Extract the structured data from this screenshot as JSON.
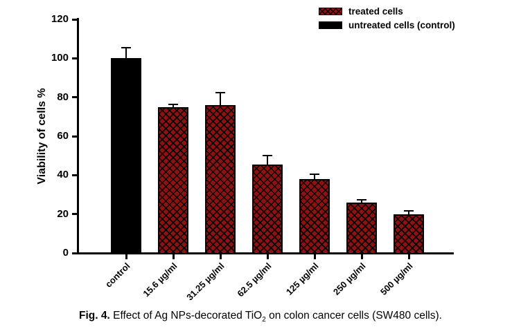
{
  "figure": {
    "caption": {
      "fig_label": "Fig. 4.",
      "body_pre": " Effect of Ag NPs-decorated TiO",
      "subscript": "2",
      "body_post": " on colon cancer cells (SW480 cells)."
    }
  },
  "chart_data": {
    "type": "bar",
    "title": "",
    "xlabel": "",
    "ylabel": "Viability of cells %",
    "categories": [
      "control",
      "15.6 µg/ml",
      "31.25 µg/ml",
      "62.5 µg/ml",
      "125 µg/ml",
      "250 µg/ml",
      "500 µg/ml"
    ],
    "values": [
      100,
      75,
      76,
      45.5,
      38,
      26,
      20
    ],
    "errors_upper": [
      5.5,
      1.5,
      6.5,
      4.5,
      2.5,
      1.5,
      1.5
    ],
    "bar_series": [
      "untreated",
      "treated",
      "treated",
      "treated",
      "treated",
      "treated",
      "treated"
    ],
    "yticks": [
      0,
      20,
      40,
      60,
      80,
      100,
      120
    ],
    "ylim": [
      0,
      120
    ],
    "grid": false,
    "legend_position": "top-right",
    "legend": [
      {
        "label": "treated cells",
        "style": "crosshatch"
      },
      {
        "label": "untreated cells (control)",
        "style": "solid"
      }
    ],
    "colors": {
      "treated_fill": "#8e1212",
      "hatch_lines": "#000000",
      "untreated_fill": "#000000",
      "axis": "#000000"
    }
  }
}
